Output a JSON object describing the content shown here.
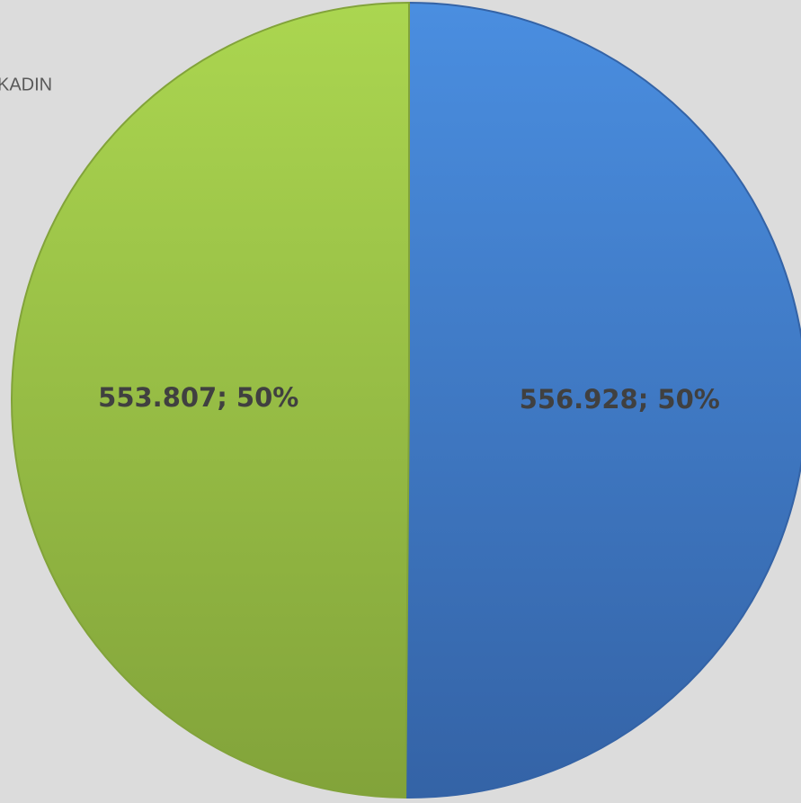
{
  "chart_data": {
    "type": "pie",
    "categories": [
      null,
      "KADIN"
    ],
    "values": [
      556928,
      553807
    ],
    "value_labels": [
      "556.928; 50%",
      "553.807; 50%"
    ],
    "colors": [
      [
        "#4a8ee0",
        "#3463a6"
      ],
      [
        "#abd650",
        "#82a33a"
      ]
    ],
    "legend": "top-left"
  }
}
